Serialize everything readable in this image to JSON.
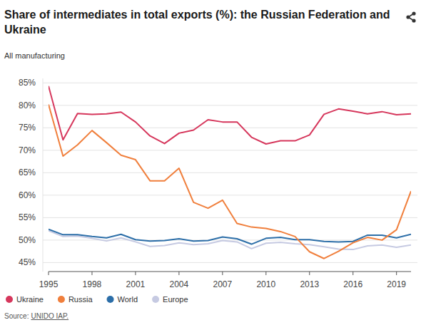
{
  "chart_data": {
    "type": "line",
    "title": "Share of intermediates in total exports (%): the Russian Federation and Ukraine",
    "subtitle": "All manufacturing",
    "source_label": "Source:",
    "source": "UNIDO IAP.",
    "x": [
      1995,
      1996,
      1997,
      1998,
      1999,
      2000,
      2001,
      2002,
      2003,
      2004,
      2005,
      2006,
      2007,
      2008,
      2009,
      2010,
      2011,
      2012,
      2013,
      2014,
      2015,
      2016,
      2017,
      2018,
      2019,
      2020
    ],
    "series": [
      {
        "name": "Ukraine",
        "color": "#d6375c",
        "values": [
          84.3,
          72.3,
          78.2,
          78.0,
          78.1,
          78.5,
          76.3,
          73.2,
          71.5,
          73.8,
          74.5,
          76.8,
          76.3,
          76.3,
          72.9,
          71.4,
          72.1,
          72.1,
          73.4,
          78.0,
          79.2,
          78.7,
          78.1,
          78.6,
          77.9,
          78.1
        ]
      },
      {
        "name": "Russia",
        "color": "#f07f3c",
        "values": [
          80.2,
          68.7,
          71.2,
          74.4,
          71.7,
          68.9,
          67.9,
          63.2,
          63.2,
          66.0,
          58.4,
          57.1,
          58.9,
          53.7,
          52.9,
          52.6,
          51.9,
          50.8,
          47.4,
          45.9,
          47.5,
          49.4,
          50.6,
          50.0,
          52.3,
          60.9
        ]
      },
      {
        "name": "World",
        "color": "#2c6ea8",
        "values": [
          52.4,
          51.2,
          51.2,
          50.8,
          50.5,
          51.3,
          50.1,
          49.8,
          49.9,
          50.3,
          49.8,
          49.9,
          50.7,
          50.3,
          49.1,
          50.4,
          50.6,
          50.1,
          50.1,
          49.7,
          49.6,
          49.7,
          51.1,
          51.1,
          50.5,
          51.3
        ]
      },
      {
        "name": "Europe",
        "color": "#c6cae2",
        "values": [
          52.1,
          50.8,
          50.9,
          50.4,
          49.8,
          50.5,
          49.6,
          48.6,
          48.8,
          49.4,
          49.0,
          49.2,
          49.9,
          49.6,
          48.1,
          49.3,
          49.5,
          49.2,
          49.0,
          48.5,
          48.0,
          47.9,
          48.7,
          48.9,
          48.4,
          48.9
        ]
      }
    ],
    "xlim": [
      1995,
      2020
    ],
    "xticks": [
      1995,
      1998,
      2001,
      2004,
      2007,
      2010,
      2013,
      2016,
      2019
    ],
    "ylim": [
      43,
      86
    ],
    "yticks": [
      {
        "value": 45,
        "label": "45%"
      },
      {
        "value": 50,
        "label": "50%"
      },
      {
        "value": 55,
        "label": "55%"
      },
      {
        "value": 60,
        "label": "60%"
      },
      {
        "value": 65,
        "label": "65%"
      },
      {
        "value": 70,
        "label": "70%"
      },
      {
        "value": 75,
        "label": "75%"
      },
      {
        "value": 80,
        "label": "80%"
      },
      {
        "value": 85,
        "label": "85%"
      }
    ],
    "grid": true,
    "legend": "bottom-left",
    "line_style": "solid"
  }
}
